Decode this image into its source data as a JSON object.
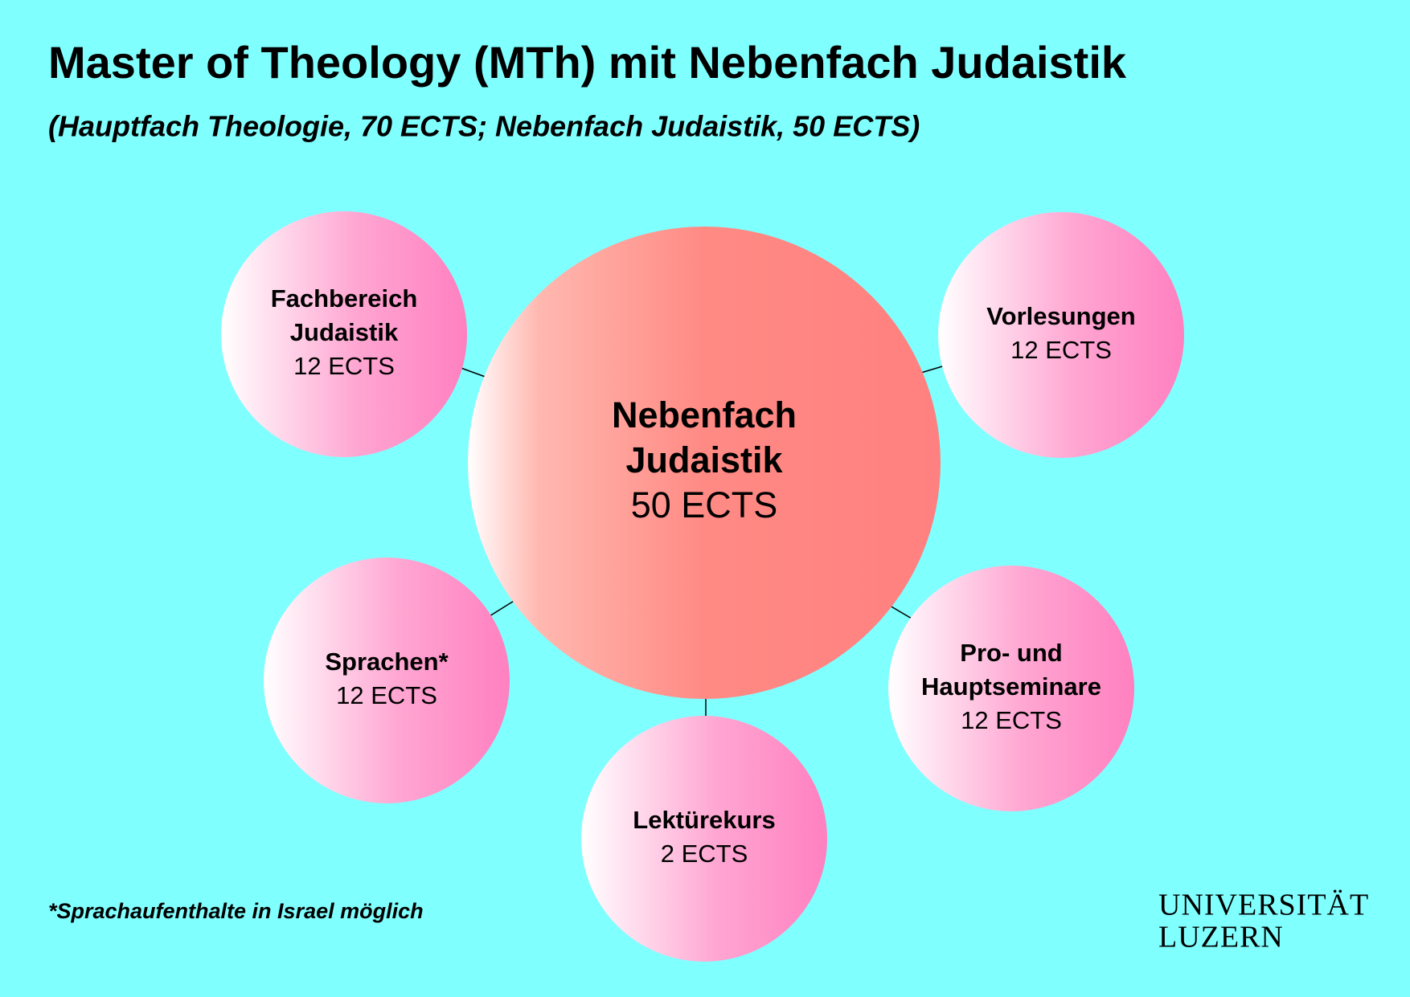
{
  "header": {
    "title": "Master of Theology (MTh) mit Nebenfach Judaistik",
    "subtitle": "(Hauptfach Theologie, 70 ECTS; Nebenfach Judaistik, 50 ECTS)"
  },
  "center": {
    "label_lines": [
      "Nebenfach",
      "Judaistik"
    ],
    "credits": "50 ECTS"
  },
  "nodes": [
    {
      "label_lines": [
        "Fachbereich",
        "Judaistik"
      ],
      "credits": "12 ECTS"
    },
    {
      "label_lines": [
        "Vorlesungen"
      ],
      "credits": "12 ECTS"
    },
    {
      "label_lines": [
        "Sprachen*"
      ],
      "credits": "12 ECTS"
    },
    {
      "label_lines": [
        "Lektürekurs"
      ],
      "credits": "2 ECTS"
    },
    {
      "label_lines": [
        "Pro- und",
        "Hauptseminare"
      ],
      "credits": "12 ECTS"
    }
  ],
  "footnote": "*Sprachaufenthalte in Israel möglich",
  "logo": {
    "lines": [
      "UNIVERSITÄT",
      "LUZERN"
    ]
  }
}
